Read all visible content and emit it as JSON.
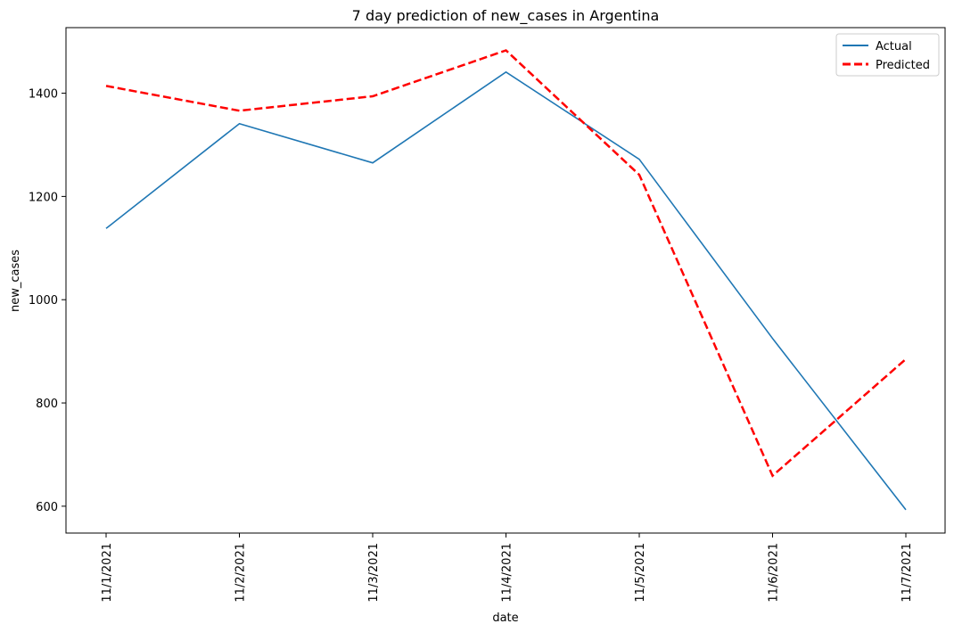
{
  "chart_data": {
    "type": "line",
    "title": "7 day prediction of new_cases in Argentina",
    "xlabel": "date",
    "ylabel": "new_cases",
    "categories": [
      "11/1/2021",
      "11/2/2021",
      "11/3/2021",
      "11/4/2021",
      "11/5/2021",
      "11/6/2021",
      "11/7/2021"
    ],
    "ylim": [
      548,
      1527
    ],
    "yticks": [
      600,
      800,
      1000,
      1200,
      1400
    ],
    "grid": false,
    "legend_position": "top-right",
    "series": [
      {
        "name": "Actual",
        "values": [
          1138,
          1341,
          1265,
          1441,
          1272,
          925,
          593
        ],
        "color": "#1f77b4",
        "style": "solid"
      },
      {
        "name": "Predicted",
        "values": [
          1414,
          1366,
          1394,
          1483,
          1242,
          659,
          885
        ],
        "color": "#ff0000",
        "style": "dashed"
      }
    ]
  }
}
